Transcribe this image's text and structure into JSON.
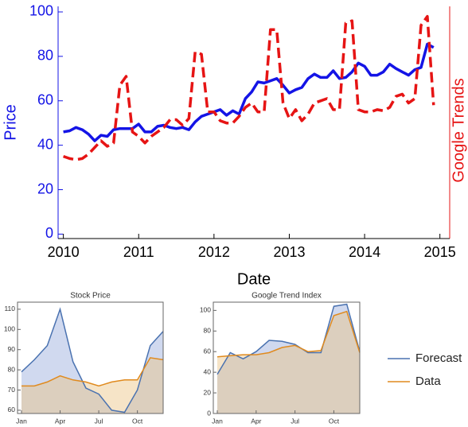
{
  "chart_data": [
    {
      "type": "line",
      "x_label": "Date",
      "y_label": "Price",
      "y2_label": "Google Trends",
      "x": [
        2010,
        2010.0833,
        2010.1667,
        2010.25,
        2010.3333,
        2010.4167,
        2010.5,
        2010.5833,
        2010.6667,
        2010.75,
        2010.8333,
        2010.9167,
        2011,
        2011.0833,
        2011.1667,
        2011.25,
        2011.3333,
        2011.4167,
        2011.5,
        2011.5833,
        2011.6667,
        2011.75,
        2011.8333,
        2011.9167,
        2012,
        2012.0833,
        2012.1667,
        2012.25,
        2012.3333,
        2012.4167,
        2012.5,
        2012.5833,
        2012.6667,
        2012.75,
        2012.8333,
        2012.9167,
        2013,
        2013.0833,
        2013.1667,
        2013.25,
        2013.3333,
        2013.4167,
        2013.5,
        2013.5833,
        2013.6667,
        2013.75,
        2013.8333,
        2013.9167,
        2014,
        2014.0833,
        2014.1667,
        2014.25,
        2014.3333,
        2014.4167,
        2014.5,
        2014.5833,
        2014.6667,
        2014.75,
        2014.8333,
        2014.9167
      ],
      "xlim": [
        2009.93,
        2015.13
      ],
      "xticks": [
        2010,
        2011,
        2012,
        2013,
        2014,
        2015
      ],
      "ylim": [
        -2,
        102.5
      ],
      "yticks": [
        0,
        20,
        40,
        60,
        80,
        100
      ],
      "y2lim": [
        -2,
        102.5
      ],
      "series": [
        {
          "color": "#1414e6",
          "dash": false,
          "values": [
            46,
            46.5,
            48,
            47,
            45,
            42,
            44.5,
            44,
            47,
            47.5,
            47.5,
            47.5,
            49.5,
            46,
            46,
            48.5,
            49,
            48,
            47.5,
            48,
            47,
            50.5,
            53,
            54,
            55,
            56,
            53.5,
            55.5,
            54,
            61,
            64,
            68.5,
            68,
            69,
            70,
            67,
            63.5,
            65,
            66,
            70,
            72,
            70.5,
            70.5,
            73.5,
            70,
            70.5,
            73,
            77,
            75.5,
            71.5,
            71.5,
            73,
            76.5,
            74.5,
            73,
            71.5,
            74,
            75,
            85.5,
            84
          ]
        },
        {
          "color": "#e61414",
          "dash": true,
          "axis": "y2",
          "values": [
            35,
            34,
            33.5,
            34,
            36,
            39,
            42,
            39.5,
            41,
            67,
            71,
            46,
            44,
            41,
            44,
            46,
            48,
            51.5,
            51.5,
            49,
            52,
            82,
            81,
            55,
            55,
            51,
            50,
            50,
            53,
            57,
            59,
            55,
            55,
            92,
            92,
            59,
            52,
            56,
            51,
            54,
            59,
            60,
            61,
            56,
            56,
            95,
            96,
            56,
            55,
            55,
            56,
            55.5,
            57,
            62,
            63,
            59,
            61,
            94,
            98,
            58
          ]
        }
      ]
    },
    {
      "type": "area",
      "title": "Stock Price",
      "categories": [
        "Jan",
        null,
        null,
        "Apr",
        null,
        null,
        "Jul",
        null,
        null,
        "Oct",
        null,
        null
      ],
      "ylim": [
        58.4,
        113.5
      ],
      "yticks": [
        60,
        70,
        80,
        90,
        100,
        110
      ],
      "series": [
        {
          "name": "Forecast",
          "color": "#4a72b0",
          "values": [
            79,
            85,
            92,
            110,
            84,
            71,
            68,
            60,
            59,
            70,
            92,
            99
          ]
        },
        {
          "name": "Data",
          "color": "#e08a1e",
          "values": [
            72,
            72,
            74,
            77,
            75,
            74,
            72,
            74,
            75,
            75,
            86,
            85
          ]
        }
      ]
    },
    {
      "type": "area",
      "title": "Google Trend Index",
      "categories": [
        "Jan",
        null,
        null,
        "Apr",
        null,
        null,
        "Jul",
        null,
        null,
        "Oct",
        null,
        null
      ],
      "ylim": [
        0,
        108
      ],
      "yticks": [
        0,
        20,
        40,
        60,
        80,
        100
      ],
      "series": [
        {
          "name": "Forecast",
          "color": "#4a72b0",
          "values": [
            38,
            59,
            53,
            60,
            71,
            70,
            67,
            59,
            59,
            104,
            106,
            60
          ]
        },
        {
          "name": "Data",
          "color": "#e08a1e",
          "values": [
            55,
            56,
            57,
            57,
            59,
            64,
            66,
            60,
            61,
            95,
            99,
            59
          ]
        }
      ]
    }
  ]
}
